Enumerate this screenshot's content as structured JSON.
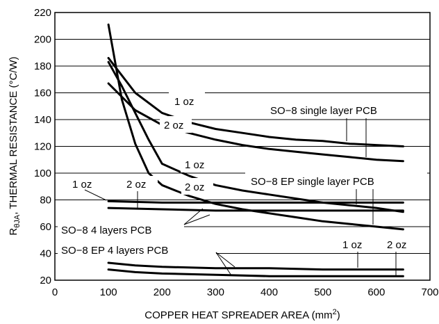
{
  "chart_data": {
    "type": "line",
    "title": "",
    "xlabel": "COPPER HEAT SPREADER AREA (mm²)",
    "ylabel": "RθJA, THERMAL RESISTANCE (°C/W)",
    "xlim": [
      0,
      700
    ],
    "ylim": [
      20,
      220
    ],
    "xticks": [
      "0",
      "100",
      "200",
      "300",
      "400",
      "500",
      "600",
      "700"
    ],
    "yticks": [
      "20",
      "40",
      "60",
      "80",
      "100",
      "120",
      "140",
      "160",
      "180",
      "200",
      "220"
    ],
    "grid": "horizontal",
    "series": [
      {
        "name": "SO-8 single layer PCB 1 oz",
        "x": [
          100,
          150,
          200,
          250,
          300,
          350,
          400,
          450,
          500,
          550,
          600,
          650
        ],
        "y": [
          186,
          160,
          145,
          138,
          133,
          130,
          127,
          125,
          124,
          122,
          121,
          120
        ]
      },
      {
        "name": "SO-8 single layer PCB 2 oz",
        "x": [
          100,
          150,
          200,
          250,
          300,
          350,
          400,
          450,
          500,
          550,
          600,
          650
        ],
        "y": [
          167,
          147,
          136,
          130,
          125,
          121,
          118,
          116,
          114,
          112,
          110,
          109
        ]
      },
      {
        "name": "SO-8 EP single layer PCB 1 oz",
        "x": [
          100,
          125,
          150,
          175,
          200,
          250,
          300,
          350,
          400,
          450,
          500,
          550,
          600,
          650
        ],
        "y": [
          183,
          165,
          145,
          125,
          107,
          98,
          91,
          87,
          84,
          81,
          78,
          76,
          74,
          71
        ]
      },
      {
        "name": "SO-8 EP single layer PCB 2 oz",
        "x": [
          100,
          125,
          150,
          175,
          200,
          250,
          300,
          350,
          400,
          450,
          500,
          550,
          600,
          650
        ],
        "y": [
          211,
          155,
          122,
          100,
          91,
          83,
          77,
          73,
          70,
          67,
          64,
          62,
          60,
          58
        ]
      },
      {
        "name": "SO-8 4 layers PCB 1 oz",
        "x": [
          100,
          200,
          300,
          400,
          500,
          600,
          650
        ],
        "y": [
          79,
          78,
          78,
          78,
          78,
          78,
          78
        ]
      },
      {
        "name": "SO-8 4 layers PCB 2 oz",
        "x": [
          100,
          200,
          300,
          400,
          500,
          600,
          650
        ],
        "y": [
          74,
          73,
          72,
          72,
          72,
          72,
          72
        ]
      },
      {
        "name": "SO-8 EP 4 layers PCB 1 oz",
        "x": [
          100,
          150,
          200,
          300,
          400,
          500,
          600,
          650
        ],
        "y": [
          33,
          31,
          30,
          29,
          29,
          28,
          28,
          28
        ]
      },
      {
        "name": "SO-8 EP 4 layers PCB 2 oz",
        "x": [
          100,
          150,
          200,
          300,
          400,
          500,
          600,
          650
        ],
        "y": [
          28,
          26,
          25,
          24,
          23,
          23,
          23,
          23
        ]
      }
    ],
    "annotations": {
      "single_1oz": "1 oz",
      "single_2oz": "2 oz",
      "so8_single": "SO−8 single layer PCB",
      "ep_1oz": "1 oz",
      "ep_2oz": "2 oz",
      "so8_ep_single": "SO−8 EP single layer PCB",
      "four_1oz": "1 oz",
      "four_2oz": "2 oz",
      "so8_4layers": "SO−8 4 layers PCB",
      "so8_ep_4layers": "SO−8 EP 4 layers PCB",
      "ep4_1oz": "1 oz",
      "ep4_2oz": "2 oz"
    },
    "ylabel_parts": {
      "main": "R",
      "sub": "θJA",
      "rest": ", THERMAL RESISTANCE (°C/W)"
    },
    "xlabel_parts": {
      "main": "COPPER HEAT SPREADER AREA (mm",
      "sup": "2",
      "end": ")"
    }
  }
}
